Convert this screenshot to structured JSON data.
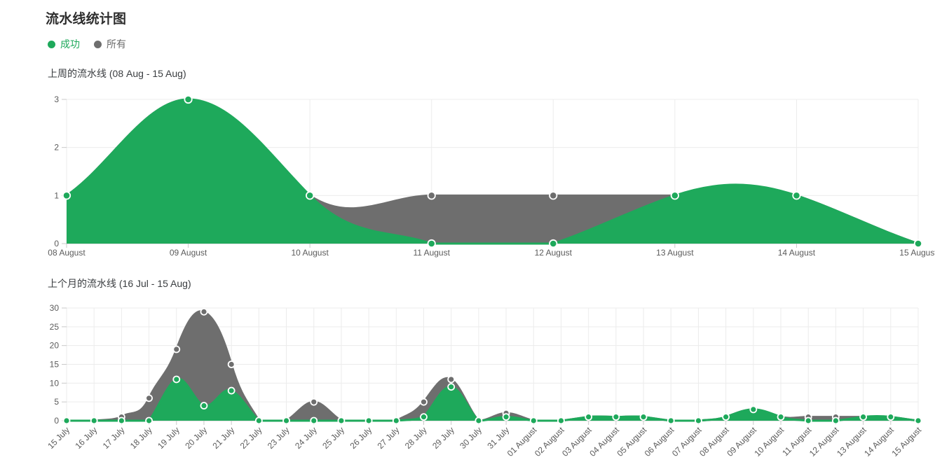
{
  "page": {
    "title": "流水线统计图"
  },
  "legend": {
    "items": [
      {
        "label": "成功",
        "color": "#1ea95b"
      },
      {
        "label": "所有",
        "color": "#6e6e6e"
      }
    ]
  },
  "chart_data": [
    {
      "type": "area",
      "title": "上周的流水线 (08 Aug - 15 Aug)",
      "categories": [
        "08 August",
        "09 August",
        "10 August",
        "11 August",
        "12 August",
        "13 August",
        "14 August",
        "15 August"
      ],
      "series": [
        {
          "name": "所有",
          "color": "#6e6e6e",
          "values": [
            1,
            3,
            1,
            1,
            1,
            1,
            1,
            0
          ]
        },
        {
          "name": "成功",
          "color": "#1ea95b",
          "values": [
            1,
            3,
            1,
            0,
            0,
            1,
            1,
            0
          ]
        }
      ],
      "ylim": [
        0,
        3
      ],
      "yticks": [
        0,
        1,
        2,
        3
      ],
      "grid": true,
      "smooth": true,
      "x_label_rotate": 0
    },
    {
      "type": "area",
      "title": "上个月的流水线 (16 Jul - 15 Aug)",
      "categories": [
        "15 July",
        "16 July",
        "17 July",
        "18 July",
        "19 July",
        "20 July",
        "21 July",
        "22 July",
        "23 July",
        "24 July",
        "25 July",
        "26 July",
        "27 July",
        "28 July",
        "29 July",
        "30 July",
        "31 July",
        "01 August",
        "02 August",
        "03 August",
        "04 August",
        "05 August",
        "06 August",
        "07 August",
        "08 August",
        "09 August",
        "10 August",
        "11 August",
        "12 August",
        "13 August",
        "14 August",
        "15 August"
      ],
      "series": [
        {
          "name": "所有",
          "color": "#6e6e6e",
          "values": [
            0,
            0,
            1,
            6,
            19,
            29,
            15,
            0,
            0,
            5,
            0,
            0,
            0,
            5,
            11,
            0,
            2,
            0,
            0,
            1,
            1,
            1,
            0,
            0,
            1,
            3,
            1,
            1,
            1,
            1,
            1,
            0
          ]
        },
        {
          "name": "成功",
          "color": "#1ea95b",
          "values": [
            0,
            0,
            0,
            0,
            11,
            4,
            8,
            0,
            0,
            0,
            0,
            0,
            0,
            1,
            9,
            0,
            1,
            0,
            0,
            1,
            1,
            1,
            0,
            0,
            1,
            3,
            1,
            0,
            0,
            1,
            1,
            0
          ]
        }
      ],
      "ylim": [
        0,
        30
      ],
      "yticks": [
        0,
        5,
        10,
        15,
        20,
        25,
        30
      ],
      "grid": true,
      "smooth": true,
      "x_label_rotate": 45
    }
  ],
  "theme": {
    "grid_line": "#ececec",
    "axis_line": "#c9c9c9",
    "tick_label": "#5b5b5b"
  }
}
